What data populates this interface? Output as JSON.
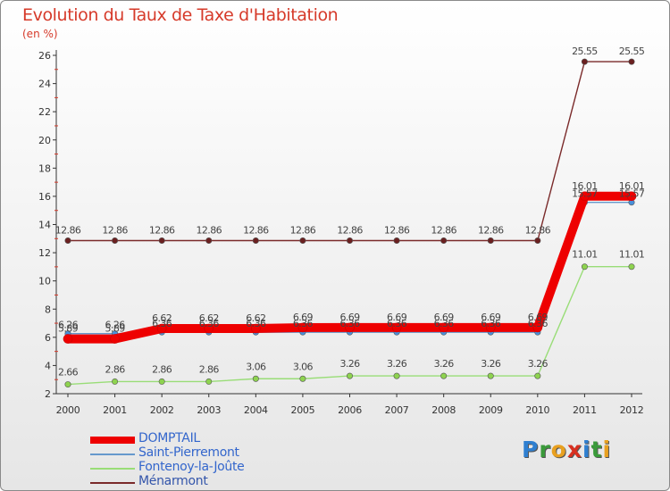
{
  "header": {
    "title": "Evolution du Taux de Taxe d'Habitation",
    "unit": "(en %)"
  },
  "brand": {
    "name": "Proxiti",
    "letters": [
      {
        "ch": "P",
        "color": "#2f7fd0"
      },
      {
        "ch": "r",
        "color": "#3a9a3a"
      },
      {
        "ch": "o",
        "color": "#e8a020"
      },
      {
        "ch": "x",
        "color": "#d83020"
      },
      {
        "ch": "i",
        "color": "#2f7fd0"
      },
      {
        "ch": "t",
        "color": "#3a9a3a"
      },
      {
        "ch": "i",
        "color": "#e8a020"
      }
    ]
  },
  "chart_data": {
    "type": "line",
    "x": [
      "2000",
      "2001",
      "2002",
      "2003",
      "2004",
      "2005",
      "2006",
      "2007",
      "2008",
      "2009",
      "2010",
      "2011",
      "2012"
    ],
    "ylim": [
      2,
      26
    ],
    "yticks": [
      2,
      4,
      6,
      8,
      10,
      12,
      14,
      16,
      18,
      20,
      22,
      24,
      26
    ],
    "grid": false,
    "legend_position": "bottom-left",
    "series": [
      {
        "name": "DOMPTAIL",
        "color": "#ee0000",
        "values": [
          5.89,
          5.89,
          6.62,
          6.62,
          6.62,
          6.69,
          6.69,
          6.69,
          6.69,
          6.69,
          6.69,
          16.01,
          16.01
        ],
        "labels": [
          "5.89",
          "5.89",
          "6.62",
          "6.62",
          "6.62",
          "6.69",
          "6.69",
          "6.69",
          "6.69",
          "6.69",
          "6.69",
          "16.01",
          "16.01"
        ]
      },
      {
        "name": "Saint-Pierremont",
        "color": "#6699cc",
        "values": [
          6.26,
          6.26,
          6.36,
          6.36,
          6.36,
          6.36,
          6.36,
          6.36,
          6.36,
          6.36,
          6.36,
          15.57,
          15.57
        ],
        "labels": [
          "6.26",
          "6.26",
          "6.36",
          "6.36",
          "6.36",
          "6.36",
          "6.36",
          "6.36",
          "6.36",
          "6.36",
          "6.36",
          "15.57",
          "15.57"
        ]
      },
      {
        "name": "Fontenoy-la-Joûte",
        "color": "#99dd77",
        "values": [
          2.66,
          2.86,
          2.86,
          2.86,
          3.06,
          3.06,
          3.26,
          3.26,
          3.26,
          3.26,
          3.26,
          11.01,
          11.01
        ],
        "labels": [
          "2.66",
          "2.86",
          "2.86",
          "2.86",
          "3.06",
          "3.06",
          "3.26",
          "3.26",
          "3.26",
          "3.26",
          "3.26",
          "11.01",
          "11.01"
        ]
      },
      {
        "name": "Ménarmont",
        "color": "#7a2a2a",
        "values": [
          12.86,
          12.86,
          12.86,
          12.86,
          12.86,
          12.86,
          12.86,
          12.86,
          12.86,
          12.86,
          12.86,
          25.55,
          25.55
        ],
        "labels": [
          "12.86",
          "12.86",
          "12.86",
          "12.86",
          "12.86",
          "12.86",
          "12.86",
          "12.86",
          "12.86",
          "12.86",
          "12.86",
          "25.55",
          "25.55"
        ]
      }
    ]
  }
}
